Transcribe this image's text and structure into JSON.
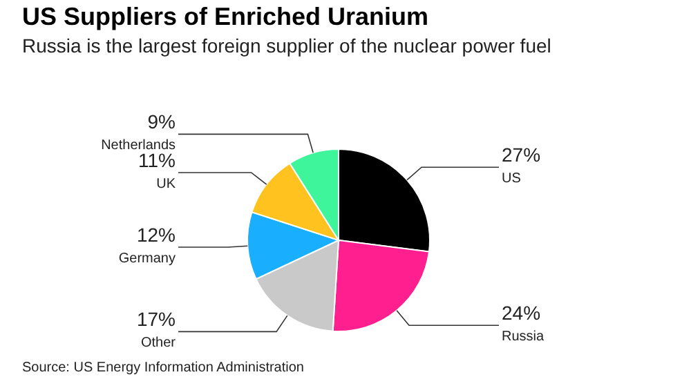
{
  "chart_data": {
    "type": "pie",
    "title": "US Suppliers of Enriched Uranium",
    "subtitle": "Russia is the largest foreign supplier of the nuclear power fuel",
    "categories": [
      "US",
      "Russia",
      "Other",
      "Germany",
      "UK",
      "Netherlands"
    ],
    "values": [
      27,
      24,
      17,
      12,
      11,
      9
    ],
    "colors": [
      "#000000",
      "#ff1f8e",
      "#c9c9c9",
      "#1aaeff",
      "#ffc21f",
      "#3ef59c"
    ],
    "value_labels": [
      "27%",
      "24%",
      "17%",
      "12%",
      "11%",
      "9%"
    ],
    "annotations": [
      "Source: US Energy Information Administration"
    ]
  }
}
